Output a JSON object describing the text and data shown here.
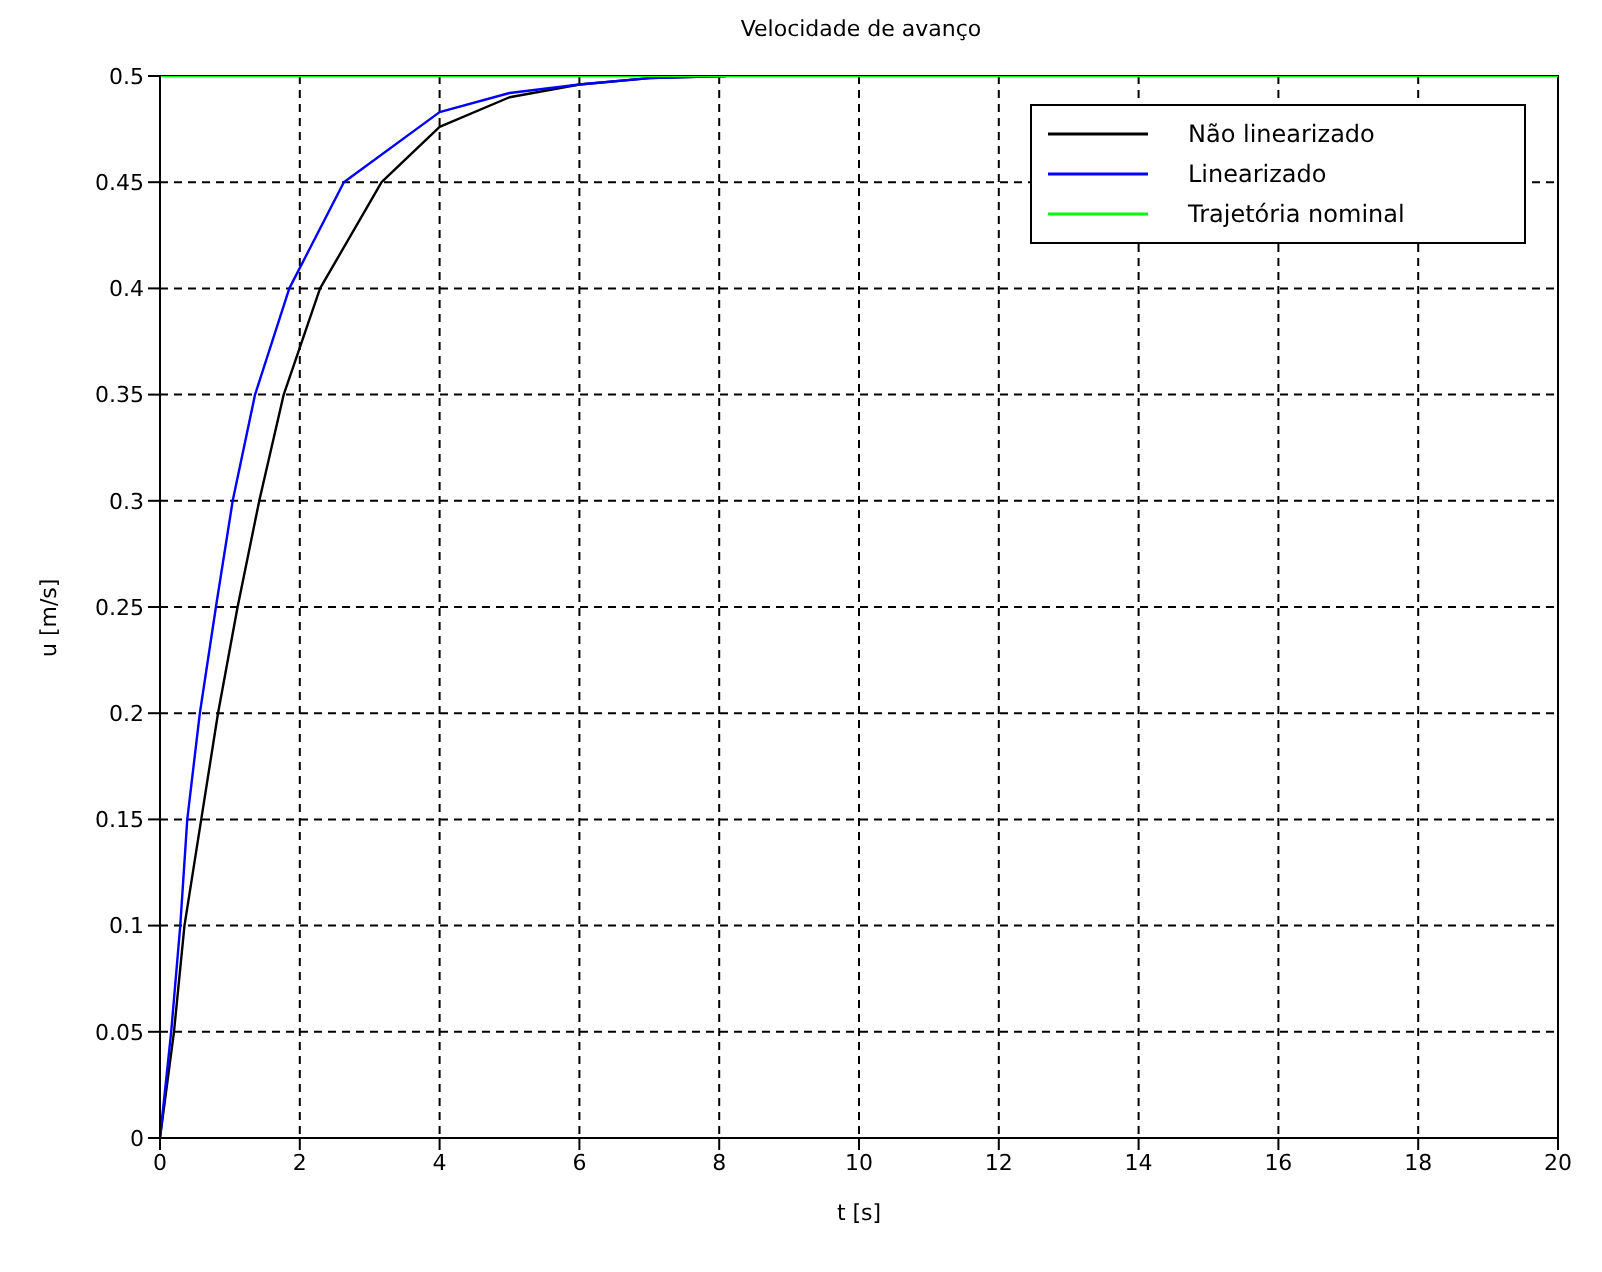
{
  "chart_data": {
    "type": "line",
    "title": "Velocidade de avanço",
    "xlabel": "t [s]",
    "ylabel": "u [m/s]",
    "xlim": [
      0,
      20
    ],
    "ylim": [
      0,
      0.5
    ],
    "xticks": [
      0,
      2,
      4,
      6,
      8,
      10,
      12,
      14,
      16,
      18,
      20
    ],
    "yticks": [
      0,
      0.05,
      0.1,
      0.15,
      0.2,
      0.25,
      0.3,
      0.35,
      0.4,
      0.45,
      0.5
    ],
    "grid": true,
    "legend": "top right",
    "marker": "none",
    "line_style": "solid",
    "series": [
      {
        "name": "Não linearizado",
        "color": "#000000",
        "x": [
          0,
          0.2,
          0.35,
          0.59,
          0.83,
          1.11,
          1.42,
          1.77,
          2.29,
          3.17,
          4,
          5,
          6,
          7,
          8.1
        ],
        "values": [
          0,
          0.05,
          0.1,
          0.15,
          0.2,
          0.25,
          0.3,
          0.35,
          0.4,
          0.45,
          0.476,
          0.49,
          0.496,
          0.499,
          0.5
        ]
      },
      {
        "name": "Linearizado",
        "color": "#0000ff",
        "x": [
          0,
          0.16,
          0.29,
          0.39,
          0.57,
          0.8,
          1.04,
          1.36,
          1.85,
          2.63,
          4,
          5,
          6,
          7,
          8.1
        ],
        "values": [
          0,
          0.05,
          0.1,
          0.15,
          0.2,
          0.25,
          0.3,
          0.35,
          0.4,
          0.45,
          0.483,
          0.492,
          0.496,
          0.499,
          0.5
        ]
      },
      {
        "name": "Trajetória nominal",
        "color": "#00ff00",
        "x": [
          0,
          20
        ],
        "values": [
          0.5,
          0.5
        ]
      }
    ]
  }
}
